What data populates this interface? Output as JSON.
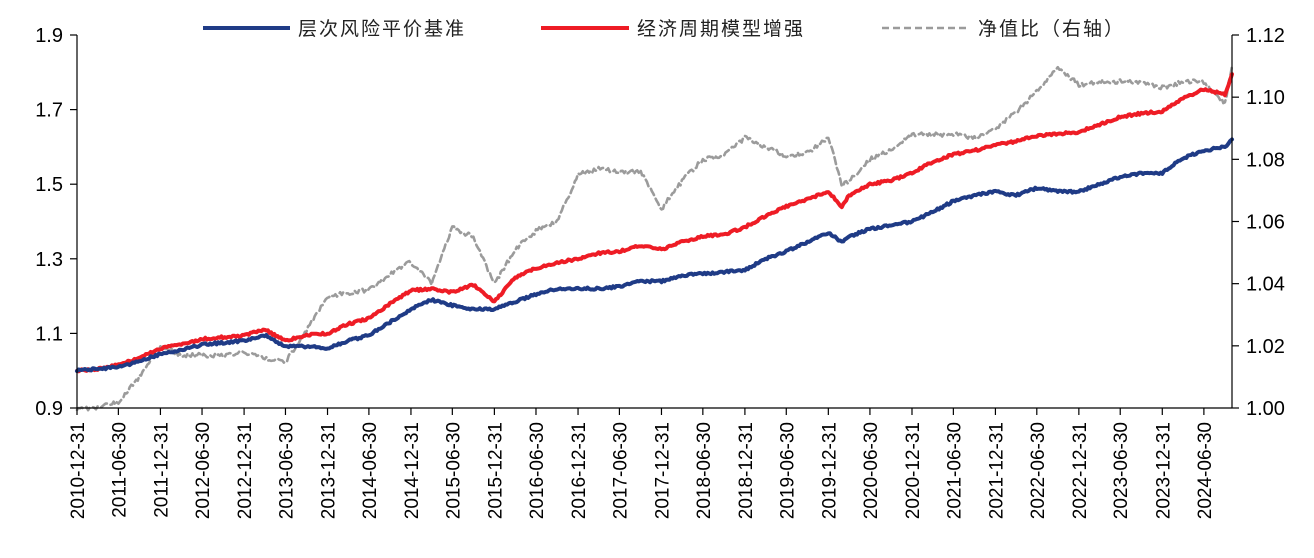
{
  "chart_data": {
    "type": "line",
    "title": "",
    "xlabel": "",
    "ylabel": "",
    "ylim": [
      0.9,
      1.9
    ],
    "y2lim": [
      1.0,
      1.12
    ],
    "yticks": [
      "0.9",
      "1.1",
      "1.3",
      "1.5",
      "1.7",
      "1.9"
    ],
    "y2ticks": [
      "1.00",
      "1.02",
      "1.04",
      "1.06",
      "1.08",
      "1.10",
      "1.12"
    ],
    "x_start": "2010-12-31",
    "x_end": "2024-10-31",
    "x_ticks": [
      "2010-12-31",
      "2011-06-30",
      "2011-12-31",
      "2012-06-30",
      "2012-12-31",
      "2013-06-30",
      "2013-12-31",
      "2014-06-30",
      "2014-12-31",
      "2015-06-30",
      "2015-12-31",
      "2016-06-30",
      "2016-12-31",
      "2017-06-30",
      "2017-12-31",
      "2018-06-30",
      "2018-12-31",
      "2019-06-30",
      "2019-12-31",
      "2020-06-30",
      "2020-12-31",
      "2021-06-30",
      "2021-12-31",
      "2022-06-30",
      "2022-12-31",
      "2023-06-30",
      "2023-12-31",
      "2024-06-30"
    ],
    "legend_position": "top",
    "grid": false,
    "series": [
      {
        "name": "层次风险平价基准",
        "axis": "left",
        "color": "#1f3b86",
        "style": "solid",
        "points": [
          [
            "2010-12-31",
            1.0
          ],
          [
            "2011-03-31",
            1.005
          ],
          [
            "2011-06-30",
            1.01
          ],
          [
            "2011-09-30",
            1.025
          ],
          [
            "2011-12-31",
            1.045
          ],
          [
            "2012-03-31",
            1.055
          ],
          [
            "2012-06-30",
            1.07
          ],
          [
            "2012-09-30",
            1.075
          ],
          [
            "2012-12-31",
            1.08
          ],
          [
            "2013-03-31",
            1.095
          ],
          [
            "2013-06-30",
            1.065
          ],
          [
            "2013-09-30",
            1.065
          ],
          [
            "2013-12-31",
            1.06
          ],
          [
            "2014-03-31",
            1.08
          ],
          [
            "2014-06-30",
            1.095
          ],
          [
            "2014-09-30",
            1.13
          ],
          [
            "2014-12-31",
            1.165
          ],
          [
            "2015-03-31",
            1.19
          ],
          [
            "2015-06-30",
            1.175
          ],
          [
            "2015-09-30",
            1.165
          ],
          [
            "2015-12-31",
            1.165
          ],
          [
            "2016-03-31",
            1.185
          ],
          [
            "2016-06-30",
            1.205
          ],
          [
            "2016-09-30",
            1.22
          ],
          [
            "2016-12-31",
            1.22
          ],
          [
            "2017-03-31",
            1.22
          ],
          [
            "2017-06-30",
            1.225
          ],
          [
            "2017-09-30",
            1.24
          ],
          [
            "2017-12-31",
            1.24
          ],
          [
            "2018-03-31",
            1.255
          ],
          [
            "2018-06-30",
            1.26
          ],
          [
            "2018-09-30",
            1.265
          ],
          [
            "2018-12-31",
            1.27
          ],
          [
            "2019-03-31",
            1.3
          ],
          [
            "2019-06-30",
            1.32
          ],
          [
            "2019-09-30",
            1.345
          ],
          [
            "2019-12-31",
            1.37
          ],
          [
            "2020-02-28",
            1.345
          ],
          [
            "2020-03-31",
            1.36
          ],
          [
            "2020-06-30",
            1.38
          ],
          [
            "2020-09-30",
            1.39
          ],
          [
            "2020-12-31",
            1.4
          ],
          [
            "2021-03-31",
            1.425
          ],
          [
            "2021-06-30",
            1.455
          ],
          [
            "2021-09-30",
            1.47
          ],
          [
            "2021-12-31",
            1.48
          ],
          [
            "2022-03-31",
            1.47
          ],
          [
            "2022-06-30",
            1.49
          ],
          [
            "2022-09-30",
            1.48
          ],
          [
            "2022-12-31",
            1.48
          ],
          [
            "2023-03-31",
            1.5
          ],
          [
            "2023-06-30",
            1.52
          ],
          [
            "2023-09-30",
            1.53
          ],
          [
            "2023-12-31",
            1.53
          ],
          [
            "2024-03-31",
            1.57
          ],
          [
            "2024-06-30",
            1.59
          ],
          [
            "2024-09-30",
            1.6
          ],
          [
            "2024-10-31",
            1.62
          ]
        ]
      },
      {
        "name": "经济周期模型增强",
        "axis": "left",
        "color": "#ee1c25",
        "style": "solid",
        "points": [
          [
            "2010-12-31",
            1.0
          ],
          [
            "2011-03-31",
            1.005
          ],
          [
            "2011-06-30",
            1.015
          ],
          [
            "2011-09-30",
            1.035
          ],
          [
            "2011-12-31",
            1.06
          ],
          [
            "2012-03-31",
            1.07
          ],
          [
            "2012-06-30",
            1.085
          ],
          [
            "2012-09-30",
            1.09
          ],
          [
            "2012-12-31",
            1.095
          ],
          [
            "2013-03-31",
            1.11
          ],
          [
            "2013-06-30",
            1.08
          ],
          [
            "2013-09-30",
            1.095
          ],
          [
            "2013-12-31",
            1.1
          ],
          [
            "2014-03-31",
            1.125
          ],
          [
            "2014-06-30",
            1.14
          ],
          [
            "2014-09-30",
            1.18
          ],
          [
            "2014-12-31",
            1.215
          ],
          [
            "2015-03-31",
            1.22
          ],
          [
            "2015-06-30",
            1.21
          ],
          [
            "2015-09-30",
            1.23
          ],
          [
            "2015-12-31",
            1.185
          ],
          [
            "2016-03-31",
            1.25
          ],
          [
            "2016-06-30",
            1.275
          ],
          [
            "2016-09-30",
            1.29
          ],
          [
            "2016-12-31",
            1.3
          ],
          [
            "2017-03-31",
            1.315
          ],
          [
            "2017-06-30",
            1.32
          ],
          [
            "2017-09-30",
            1.335
          ],
          [
            "2017-12-31",
            1.325
          ],
          [
            "2018-03-31",
            1.345
          ],
          [
            "2018-06-30",
            1.36
          ],
          [
            "2018-09-30",
            1.365
          ],
          [
            "2018-12-31",
            1.385
          ],
          [
            "2019-03-31",
            1.415
          ],
          [
            "2019-06-30",
            1.44
          ],
          [
            "2019-09-30",
            1.46
          ],
          [
            "2019-12-31",
            1.48
          ],
          [
            "2020-02-28",
            1.44
          ],
          [
            "2020-03-31",
            1.47
          ],
          [
            "2020-06-30",
            1.5
          ],
          [
            "2020-09-30",
            1.51
          ],
          [
            "2020-12-31",
            1.53
          ],
          [
            "2021-03-31",
            1.56
          ],
          [
            "2021-06-30",
            1.58
          ],
          [
            "2021-09-30",
            1.59
          ],
          [
            "2021-12-31",
            1.605
          ],
          [
            "2022-03-31",
            1.615
          ],
          [
            "2022-06-30",
            1.63
          ],
          [
            "2022-09-30",
            1.635
          ],
          [
            "2022-12-31",
            1.64
          ],
          [
            "2023-03-31",
            1.66
          ],
          [
            "2023-06-30",
            1.68
          ],
          [
            "2023-09-30",
            1.69
          ],
          [
            "2023-12-31",
            1.695
          ],
          [
            "2024-03-31",
            1.73
          ],
          [
            "2024-06-30",
            1.755
          ],
          [
            "2024-09-30",
            1.74
          ],
          [
            "2024-10-31",
            1.795
          ]
        ]
      },
      {
        "name": "净值比（右轴）",
        "axis": "right",
        "color": "#9b9b9b",
        "style": "dashed",
        "points": [
          [
            "2010-12-31",
            1.0
          ],
          [
            "2011-03-31",
            1.0
          ],
          [
            "2011-06-30",
            1.002
          ],
          [
            "2011-09-30",
            1.01
          ],
          [
            "2011-12-31",
            1.02
          ],
          [
            "2012-03-31",
            1.017
          ],
          [
            "2012-06-30",
            1.017
          ],
          [
            "2012-09-30",
            1.017
          ],
          [
            "2012-12-31",
            1.018
          ],
          [
            "2013-03-31",
            1.016
          ],
          [
            "2013-06-30",
            1.015
          ],
          [
            "2013-09-30",
            1.025
          ],
          [
            "2013-12-31",
            1.036
          ],
          [
            "2014-03-31",
            1.037
          ],
          [
            "2014-06-30",
            1.038
          ],
          [
            "2014-09-30",
            1.043
          ],
          [
            "2014-12-31",
            1.047
          ],
          [
            "2015-03-31",
            1.04
          ],
          [
            "2015-06-30",
            1.058
          ],
          [
            "2015-09-30",
            1.055
          ],
          [
            "2015-12-31",
            1.04
          ],
          [
            "2016-03-31",
            1.051
          ],
          [
            "2016-06-30",
            1.057
          ],
          [
            "2016-09-30",
            1.06
          ],
          [
            "2016-12-31",
            1.075
          ],
          [
            "2017-03-31",
            1.077
          ],
          [
            "2017-06-30",
            1.076
          ],
          [
            "2017-09-30",
            1.076
          ],
          [
            "2017-12-31",
            1.064
          ],
          [
            "2018-03-31",
            1.073
          ],
          [
            "2018-06-30",
            1.08
          ],
          [
            "2018-09-30",
            1.081
          ],
          [
            "2018-12-31",
            1.087
          ],
          [
            "2019-03-31",
            1.084
          ],
          [
            "2019-06-30",
            1.081
          ],
          [
            "2019-09-30",
            1.082
          ],
          [
            "2019-12-31",
            1.087
          ],
          [
            "2020-02-28",
            1.072
          ],
          [
            "2020-03-31",
            1.073
          ],
          [
            "2020-06-30",
            1.08
          ],
          [
            "2020-09-30",
            1.083
          ],
          [
            "2020-12-31",
            1.088
          ],
          [
            "2021-03-31",
            1.088
          ],
          [
            "2021-06-30",
            1.088
          ],
          [
            "2021-09-30",
            1.087
          ],
          [
            "2021-12-31",
            1.09
          ],
          [
            "2022-03-31",
            1.095
          ],
          [
            "2022-06-30",
            1.102
          ],
          [
            "2022-09-30",
            1.11
          ],
          [
            "2022-12-31",
            1.104
          ],
          [
            "2023-03-31",
            1.105
          ],
          [
            "2023-06-30",
            1.105
          ],
          [
            "2023-09-30",
            1.105
          ],
          [
            "2023-12-31",
            1.103
          ],
          [
            "2024-03-31",
            1.105
          ],
          [
            "2024-06-30",
            1.105
          ],
          [
            "2024-09-30",
            1.098
          ],
          [
            "2024-10-31",
            1.11
          ]
        ]
      }
    ]
  }
}
